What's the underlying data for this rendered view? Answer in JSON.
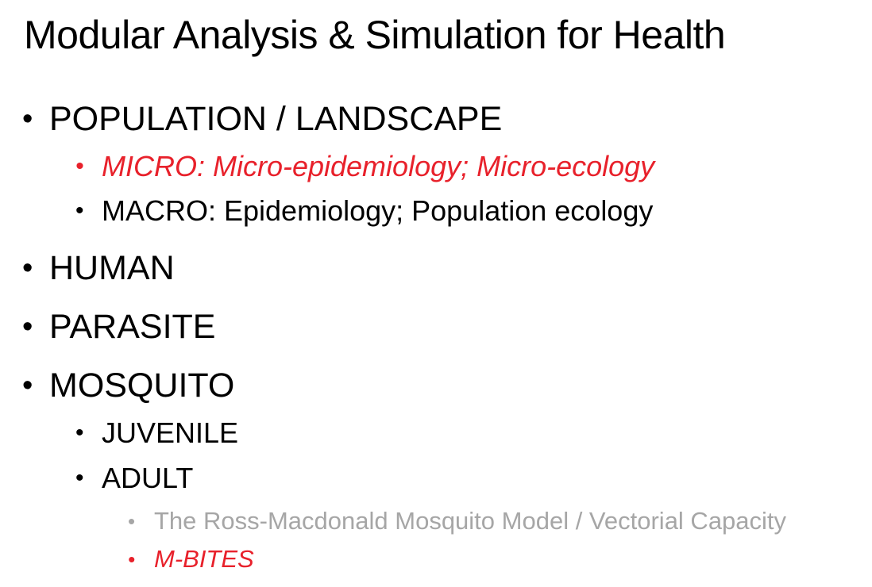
{
  "slide": {
    "title": "Modular Analysis & Simulation for Health",
    "bullet_glyph": "•",
    "items": [
      {
        "text": "POPULATION / LANDSCAPE",
        "level": 1,
        "color": "#000000"
      },
      {
        "text": "MICRO: Micro-epidemiology; Micro-ecology",
        "level": 2,
        "color": "#e8212b"
      },
      {
        "text": "MACRO: Epidemiology; Population ecology",
        "level": 2,
        "color": "#000000"
      },
      {
        "text": "HUMAN",
        "level": 1,
        "color": "#000000"
      },
      {
        "text": "PARASITE",
        "level": 1,
        "color": "#000000"
      },
      {
        "text": "MOSQUITO",
        "level": 1,
        "color": "#000000"
      },
      {
        "text": "JUVENILE",
        "level": 2,
        "color": "#000000"
      },
      {
        "text": "ADULT",
        "level": 2,
        "color": "#000000"
      },
      {
        "text": "The Ross-Macdonald Mosquito Model / Vectorial Capacity",
        "level": 3,
        "color": "#a6a6a6"
      },
      {
        "text": "M-BITES",
        "level": 3,
        "color": "#e8212b"
      }
    ]
  }
}
